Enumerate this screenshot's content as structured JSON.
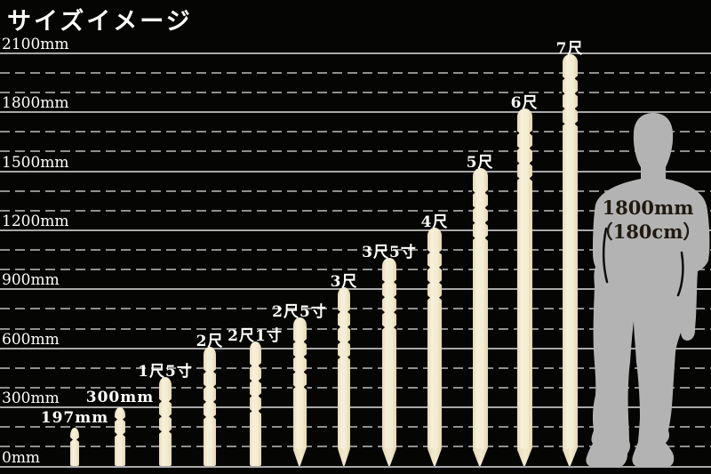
{
  "title": "サイズイメージ",
  "colors": {
    "background": "#050503",
    "grid_solid": "#a8a8a8",
    "grid_dashed": "#8f8f8f",
    "stake_fill": "#f3ebd1",
    "stake_edge": "#e3d5ae",
    "label_text": "#ffffff",
    "silhouette": "#b3b3b3",
    "silhouette_text": "#201910"
  },
  "chart_data": {
    "type": "bar",
    "title": "サイズイメージ",
    "unit": "mm",
    "ylim": [
      0,
      2100
    ],
    "grid": "solid lines every 300mm, dashed lines every 100mm",
    "legend_position": "none",
    "axis_ticks": [
      {
        "label": "0mm",
        "mm": 0
      },
      {
        "label": "300mm",
        "mm": 300
      },
      {
        "label": "600mm",
        "mm": 600
      },
      {
        "label": "900mm",
        "mm": 900
      },
      {
        "label": "1200mm",
        "mm": 1200
      },
      {
        "label": "1500mm",
        "mm": 1500
      },
      {
        "label": "1800mm",
        "mm": 1800
      },
      {
        "label": "2100mm",
        "mm": 2100
      }
    ],
    "minor_grid_step_mm": 100,
    "bars": [
      {
        "label": "197mm",
        "length_mm": 197
      },
      {
        "label": "300mm",
        "length_mm": 300
      },
      {
        "label": "1尺5寸",
        "length_mm": 455
      },
      {
        "label": "2尺",
        "length_mm": 606
      },
      {
        "label": "2尺1寸",
        "length_mm": 636
      },
      {
        "label": "2尺5寸",
        "length_mm": 758
      },
      {
        "label": "3尺",
        "length_mm": 909
      },
      {
        "label": "3尺5寸",
        "length_mm": 1061
      },
      {
        "label": "4尺",
        "length_mm": 1212
      },
      {
        "label": "5尺",
        "length_mm": 1515
      },
      {
        "label": "6尺",
        "length_mm": 1818
      },
      {
        "label": "7尺",
        "length_mm": 2121
      }
    ],
    "reference_figure": {
      "label_line1": "1800mm",
      "label_line2": "（180cm）",
      "height_mm": 1800
    }
  }
}
